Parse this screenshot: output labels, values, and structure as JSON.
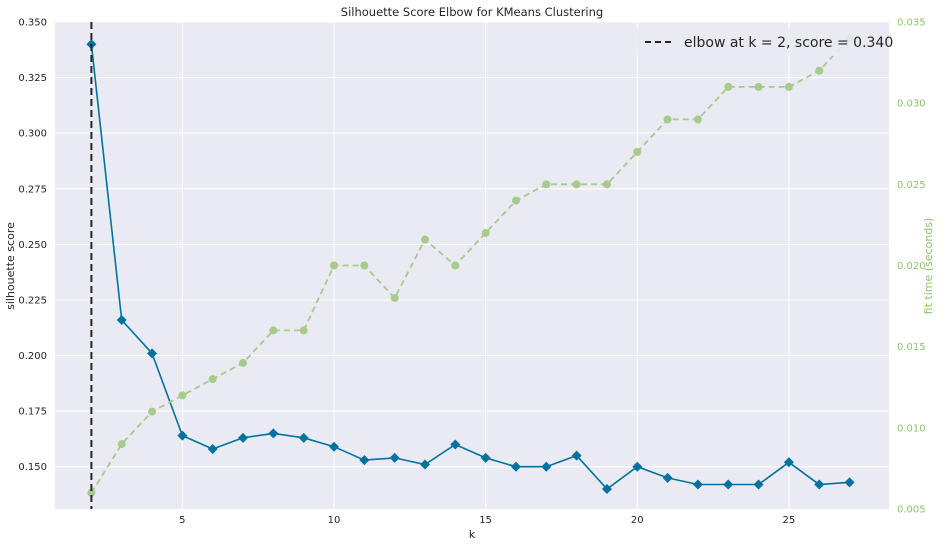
{
  "chart_data": {
    "type": "line",
    "title": "Silhouette Score Elbow for KMeans Clustering",
    "xlabel": "k",
    "ylabel": "silhouette score",
    "y2label": "fit time (seconds)",
    "xlim": [
      0.8,
      28.3
    ],
    "ylim": [
      0.131,
      0.35
    ],
    "y2lim": [
      0.005,
      0.035
    ],
    "xticks": [
      "5",
      "10",
      "15",
      "20",
      "25"
    ],
    "yticks": [
      "0.150",
      "0.175",
      "0.200",
      "0.225",
      "0.250",
      "0.275",
      "0.300",
      "0.325",
      "0.350"
    ],
    "y2ticks": [
      "0.005",
      "0.010",
      "0.015",
      "0.020",
      "0.025",
      "0.030",
      "0.035"
    ],
    "x": [
      2,
      3,
      4,
      5,
      6,
      7,
      8,
      9,
      10,
      11,
      12,
      13,
      14,
      15,
      16,
      17,
      18,
      19,
      20,
      21,
      22,
      23,
      24,
      25,
      26,
      27
    ],
    "series": [
      {
        "axis": "left",
        "color": "#0072a0",
        "marker": "diamond",
        "values": [
          0.34,
          0.216,
          0.201,
          0.164,
          0.158,
          0.163,
          0.165,
          0.163,
          0.159,
          0.153,
          0.154,
          0.151,
          0.16,
          0.154,
          0.15,
          0.15,
          0.155,
          0.14,
          0.15,
          0.145,
          0.142,
          0.142,
          0.142,
          0.152,
          0.142,
          0.143
        ]
      },
      {
        "axis": "right",
        "color": "#a8ca8c",
        "marker": "circle",
        "dashed": true,
        "values": [
          0.006,
          0.009,
          0.011,
          0.012,
          0.013,
          0.014,
          0.016,
          0.016,
          0.02,
          0.02,
          0.018,
          0.0216,
          0.02,
          0.022,
          0.024,
          0.025,
          0.025,
          0.025,
          0.027,
          0.029,
          0.029,
          0.031,
          0.031,
          0.031,
          0.032,
          0.034
        ]
      }
    ],
    "elbow": {
      "k": 2,
      "score": "0.340",
      "legend_text": "elbow at k = 2, score = 0.340"
    },
    "grid": true,
    "legend": "top-right",
    "colors": {
      "background": "#eaeaf2",
      "grid": "#ffffff",
      "score_line": "#0072a0",
      "time_line": "#a8ca8c",
      "time_axis": "#8dc56b",
      "elbow_line": "#262626"
    }
  }
}
